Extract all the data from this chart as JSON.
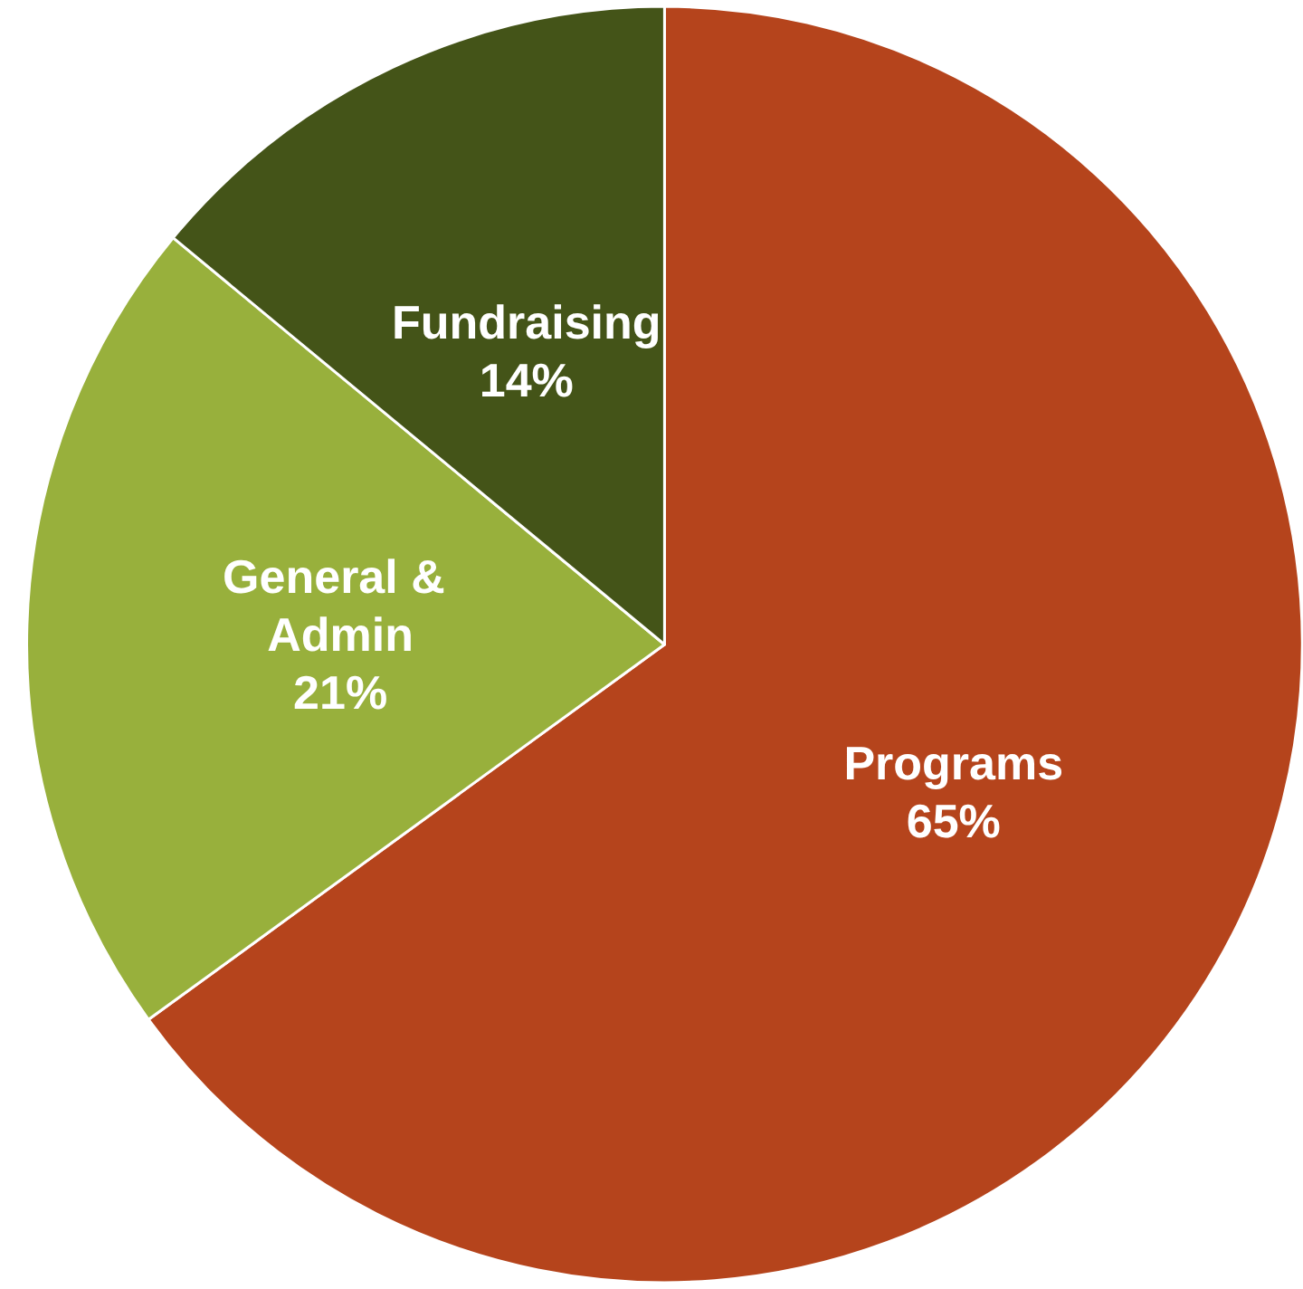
{
  "chart_data": {
    "type": "pie",
    "categories": [
      "Programs",
      "General & Admin",
      "Fundraising"
    ],
    "values": [
      65,
      21,
      14
    ],
    "colors": [
      "#b5441c",
      "#98b03c",
      "#445418"
    ],
    "value_labels": [
      "65%",
      "21%",
      "14%"
    ],
    "legend": false
  }
}
